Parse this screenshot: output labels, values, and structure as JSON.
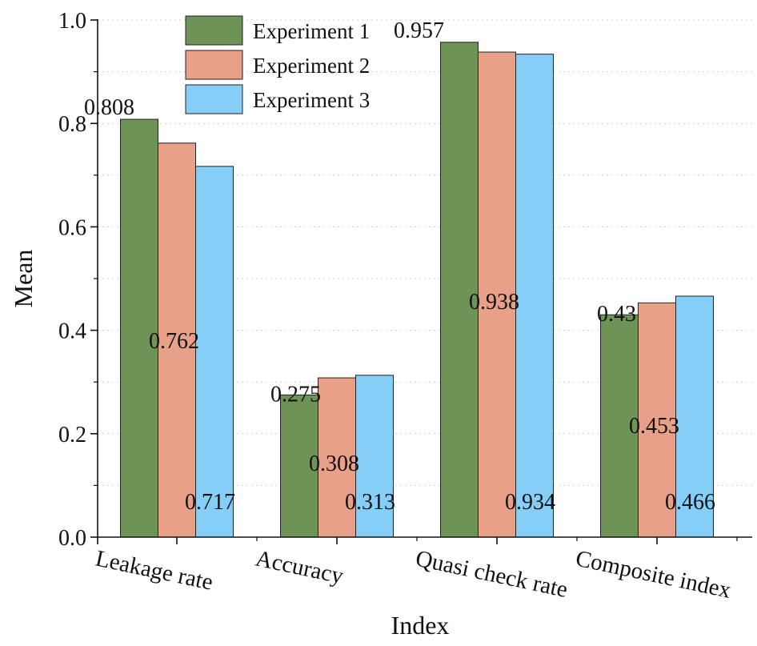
{
  "chart_data": {
    "type": "bar",
    "title": "",
    "xlabel": "Index",
    "ylabel": "Mean",
    "ylim": [
      0,
      1.0
    ],
    "yticks": [
      "0.0",
      "0.2",
      "0.4",
      "0.6",
      "0.8",
      "1.0"
    ],
    "grid": "dotted-horizontal",
    "legend_position": "top-left",
    "categories": [
      "Leakage rate",
      "Accuracy",
      "Quasi check rate",
      "Composite index"
    ],
    "series": [
      {
        "name": "Experiment 1",
        "color": "#6e9356",
        "values": [
          0.808,
          0.275,
          0.957,
          0.43
        ],
        "labels": [
          "0.808",
          "0.275",
          "0.957",
          "0.43"
        ]
      },
      {
        "name": "Experiment 2",
        "color": "#e8a088",
        "values": [
          0.762,
          0.308,
          0.938,
          0.453
        ],
        "labels": [
          "0.762",
          "0.308",
          "0.938",
          "0.453"
        ]
      },
      {
        "name": "Experiment 3",
        "color": "#84cef7",
        "values": [
          0.717,
          0.313,
          0.934,
          0.466
        ],
        "labels": [
          "0.717",
          "0.313",
          "0.934",
          "0.466"
        ]
      }
    ]
  }
}
